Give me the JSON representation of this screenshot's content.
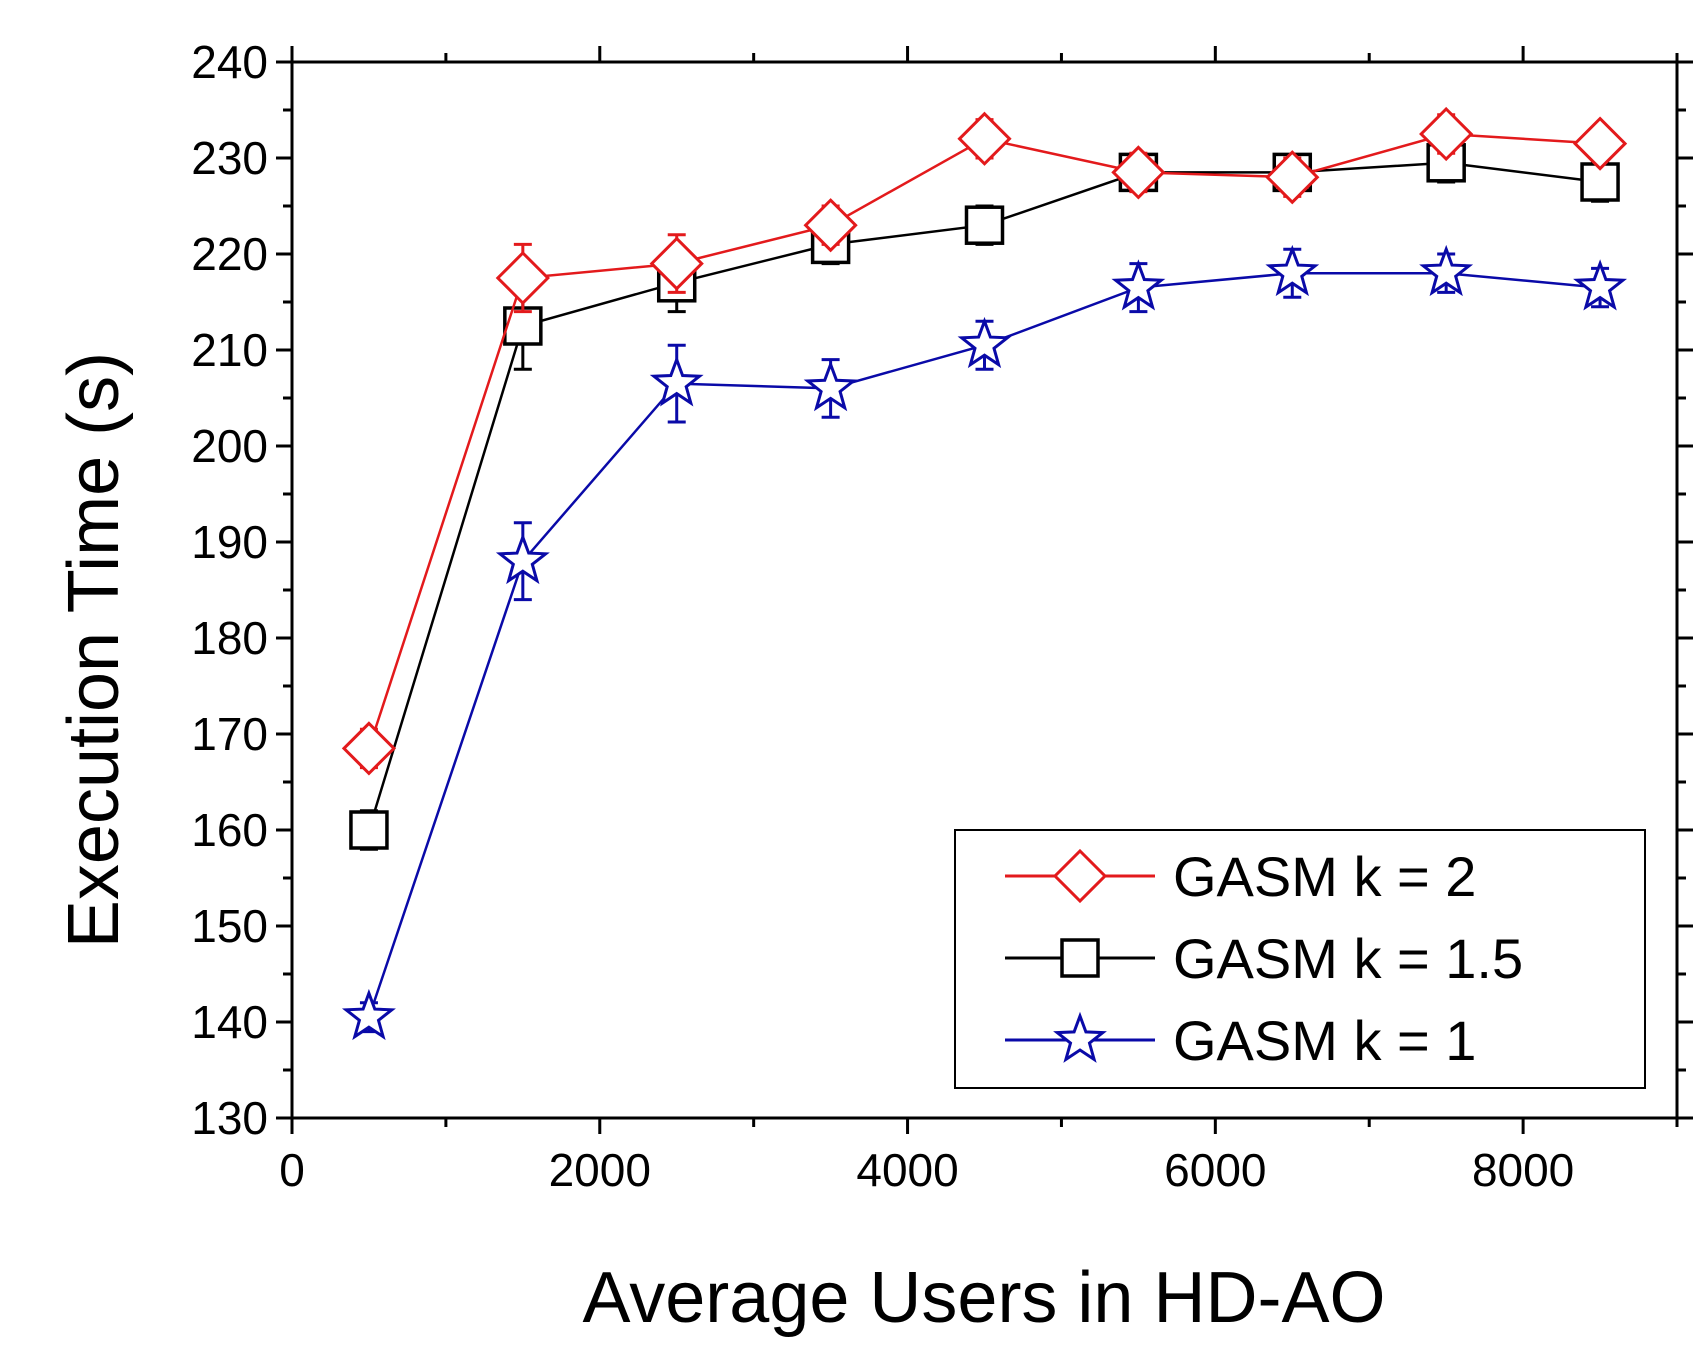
{
  "chart_data": {
    "type": "line",
    "title": "",
    "xlabel": "Average Users in HD-AO",
    "ylabel": "Execution Time (s)",
    "xlim": [
      0,
      9000
    ],
    "ylim": [
      130,
      240
    ],
    "xticks": [
      0,
      2000,
      4000,
      6000,
      8000
    ],
    "xtick_labels": [
      "0",
      "2000",
      "4000",
      "6000",
      "8000"
    ],
    "yticks": [
      130,
      140,
      150,
      160,
      170,
      180,
      190,
      200,
      210,
      220,
      230,
      240
    ],
    "ytick_labels": [
      "130",
      "140",
      "150",
      "160",
      "170",
      "180",
      "190",
      "200",
      "210",
      "220",
      "230",
      "240"
    ],
    "legend_position": "bottom-right",
    "grid": false,
    "x": [
      500,
      1500,
      2500,
      3500,
      4500,
      5500,
      6500,
      7500,
      8500
    ],
    "series": [
      {
        "name": "GASM k = 2",
        "label": "GASM k = 2",
        "color": "#e31a1c",
        "marker": "diamond",
        "values": [
          168.5,
          217.5,
          219,
          223,
          232,
          228.5,
          228,
          232.5,
          231.5
        ],
        "errors": [
          2,
          3.5,
          3,
          2,
          2,
          2,
          2,
          2,
          1.5
        ]
      },
      {
        "name": "GASM k = 1.5",
        "label": "GASM k = 1.5",
        "color": "#000000",
        "marker": "square",
        "values": [
          160,
          212.5,
          217,
          221,
          223,
          228.5,
          228.5,
          229.5,
          227.5
        ],
        "errors": [
          2,
          4.5,
          3,
          2,
          2,
          1.5,
          1.5,
          2,
          2
        ]
      },
      {
        "name": "GASM k = 1",
        "label": "GASM k = 1",
        "color": "#0a0aa8",
        "marker": "star",
        "values": [
          140.5,
          188,
          206.5,
          206,
          210.5,
          216.5,
          218,
          218,
          216.5
        ],
        "errors": [
          1.5,
          4,
          4,
          3,
          2.5,
          2.5,
          2.5,
          2,
          2
        ]
      }
    ]
  }
}
